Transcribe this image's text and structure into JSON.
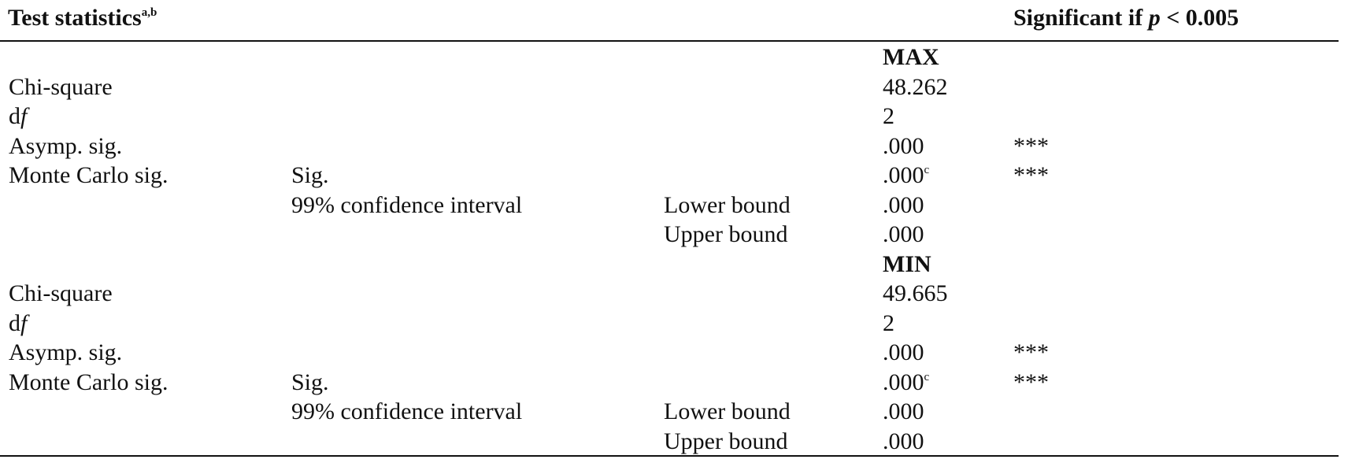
{
  "header": {
    "title": "Test statistics",
    "title_sup": "a,b",
    "significance": [
      "Significant if ",
      "p",
      " < 0.005"
    ]
  },
  "sections": [
    {
      "label": "MAX",
      "rows": [
        {
          "c1": "Chi-square",
          "value": "48.262"
        },
        {
          "c1": "d",
          "c1_italic": "f",
          "value": "2"
        },
        {
          "c1": "Asymp. sig.",
          "value": ".000",
          "sig": "***"
        },
        {
          "c1": "Monte Carlo sig.",
          "c2": "Sig.",
          "value": ".000",
          "value_sup": "c",
          "sig": "***"
        },
        {
          "c2": "99% confidence interval",
          "c3": "Lower bound",
          "value": ".000"
        },
        {
          "c3": "Upper bound",
          "value": ".000"
        }
      ]
    },
    {
      "label": "MIN",
      "rows": [
        {
          "c1": "Chi-square",
          "value": "49.665"
        },
        {
          "c1": "d",
          "c1_italic": "f",
          "value": "2"
        },
        {
          "c1": "Asymp. sig.",
          "value": ".000",
          "sig": "***"
        },
        {
          "c1": "Monte Carlo sig.",
          "c2": "Sig.",
          "value": ".000",
          "value_sup": "c",
          "sig": "***"
        },
        {
          "c2": "99% confidence interval",
          "c3": "Lower bound",
          "value": ".000"
        },
        {
          "c3": "Upper bound",
          "value": ".000"
        }
      ]
    }
  ]
}
